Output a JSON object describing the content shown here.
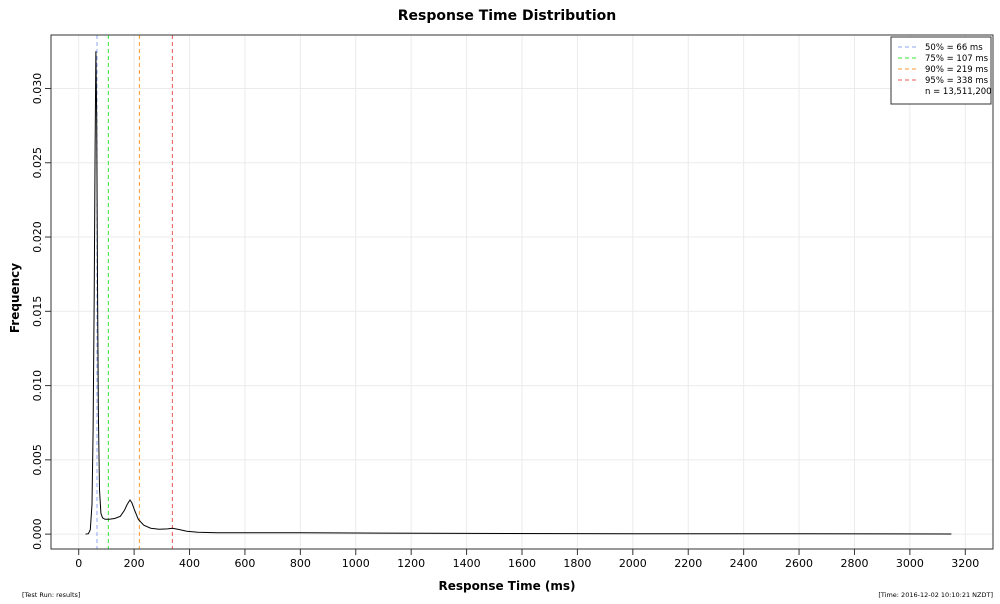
{
  "chart_data": {
    "type": "line",
    "title": "Response Time Distribution",
    "xlabel": "Response Time (ms)",
    "ylabel": "Frequency",
    "xlim": [
      -100,
      3300
    ],
    "ylim": [
      -0.001,
      0.0336
    ],
    "xticks": [
      0,
      200,
      400,
      600,
      800,
      1000,
      1200,
      1400,
      1600,
      1800,
      2000,
      2200,
      2400,
      2600,
      2800,
      3000,
      3200
    ],
    "yticks": [
      0.0,
      0.005,
      0.01,
      0.015,
      0.02,
      0.025,
      0.03
    ],
    "ytick_labels": [
      "0.000",
      "0.005",
      "0.010",
      "0.015",
      "0.020",
      "0.025",
      "0.030"
    ],
    "grid": true,
    "legend_position": "top-right",
    "series": [
      {
        "color": "#000000",
        "x": [
          25,
          35,
          42,
          48,
          52,
          56,
          59,
          62,
          65,
          68,
          71,
          75,
          80,
          86,
          95,
          110,
          130,
          150,
          165,
          175,
          185,
          192,
          200,
          215,
          235,
          260,
          290,
          320,
          338,
          360,
          390,
          430,
          500,
          600,
          800,
          1000,
          1400,
          2000,
          2600,
          3150
        ],
        "y": [
          0,
          3e-05,
          0.0003,
          0.002,
          0.007,
          0.016,
          0.026,
          0.0325,
          0.028,
          0.017,
          0.008,
          0.003,
          0.0014,
          0.0011,
          0.001,
          0.001,
          0.00105,
          0.0012,
          0.0016,
          0.002,
          0.0023,
          0.0021,
          0.0017,
          0.001,
          0.0006,
          0.0004,
          0.00033,
          0.00035,
          0.0004,
          0.00032,
          0.0002,
          0.00013,
          0.0001,
          0.0001,
          0.0001,
          8e-05,
          5e-05,
          3e-05,
          2e-05,
          1e-05
        ]
      }
    ],
    "percentile_lines": [
      {
        "label": "50% = 66 ms",
        "value": 66,
        "color": "#8ea6f0"
      },
      {
        "label": "75% = 107 ms",
        "value": 107,
        "color": "#33e633"
      },
      {
        "label": "90% = 219 ms",
        "value": 219,
        "color": "#ff9933"
      },
      {
        "label": "95% = 338 ms",
        "value": 338,
        "color": "#ee5555"
      }
    ],
    "legend_note": "n = 13,511,200"
  },
  "footer": {
    "left": "[Test Run: results]",
    "right": "[Time: 2016-12-02 10:10:21 NZDT]"
  }
}
